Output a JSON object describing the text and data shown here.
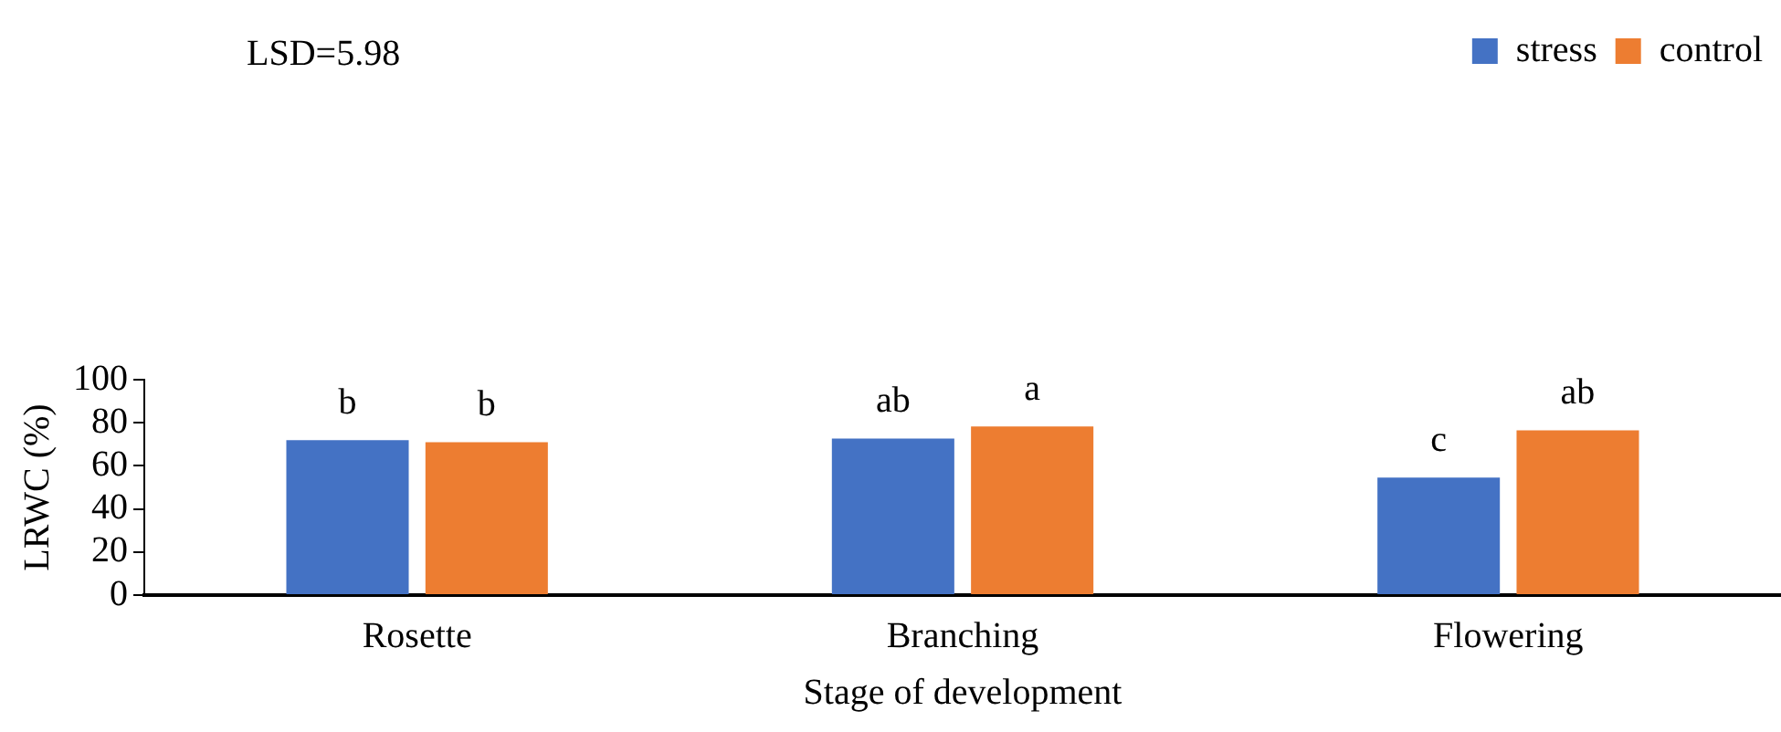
{
  "chart_data": {
    "type": "bar",
    "xlabel": "Stage of development",
    "ylabel": "LRWC (%)",
    "annotations": [
      "LSD=5.98"
    ],
    "categories": [
      "Rosette",
      "Branching",
      "Flowering"
    ],
    "series": [
      {
        "name": "stress",
        "color": "#4472c4",
        "values": [
          71.9,
          72.7,
          54.6
        ],
        "value_labels": [
          "b",
          "ab",
          "c"
        ]
      },
      {
        "name": "control",
        "color": "#ed7d31",
        "values": [
          71.0,
          78.3,
          76.5
        ],
        "value_labels": [
          "b",
          "a",
          "ab"
        ]
      }
    ],
    "ylim": [
      0,
      100
    ],
    "yticks": [
      0,
      20,
      40,
      60,
      80,
      100
    ],
    "grid": false,
    "legend": "top right"
  }
}
